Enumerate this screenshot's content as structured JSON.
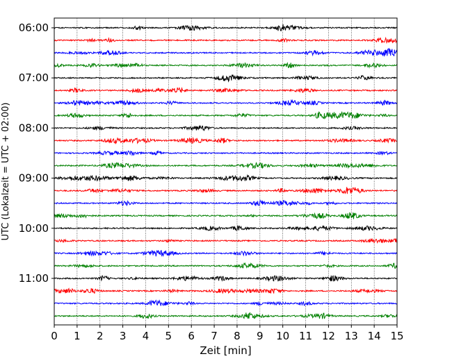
{
  "chart_data": {
    "type": "line",
    "title": "",
    "xlabel": "Zeit  [min]",
    "ylabel": "UTC (Lokalzeit = UTC + 02:00)",
    "xlim": [
      0,
      15
    ],
    "x_ticks": [
      "0",
      "1",
      "2",
      "3",
      "4",
      "5",
      "6",
      "7",
      "8",
      "9",
      "10",
      "11",
      "12",
      "13",
      "14",
      "15"
    ],
    "y_ticks": [
      "06:00",
      "07:00",
      "08:00",
      "09:00",
      "10:00",
      "11:00"
    ],
    "grid_x": true,
    "row_colors": [
      "#000000",
      "#ff0000",
      "#0000ff",
      "#008000"
    ],
    "rows": [
      "06:00",
      "06:15",
      "06:30",
      "06:45",
      "07:00",
      "07:15",
      "07:30",
      "07:45",
      "08:00",
      "08:15",
      "08:30",
      "08:45",
      "09:00",
      "09:15",
      "09:30",
      "09:45",
      "10:00",
      "10:15",
      "10:30",
      "10:45",
      "11:00",
      "11:15",
      "11:30",
      "11:45"
    ]
  }
}
